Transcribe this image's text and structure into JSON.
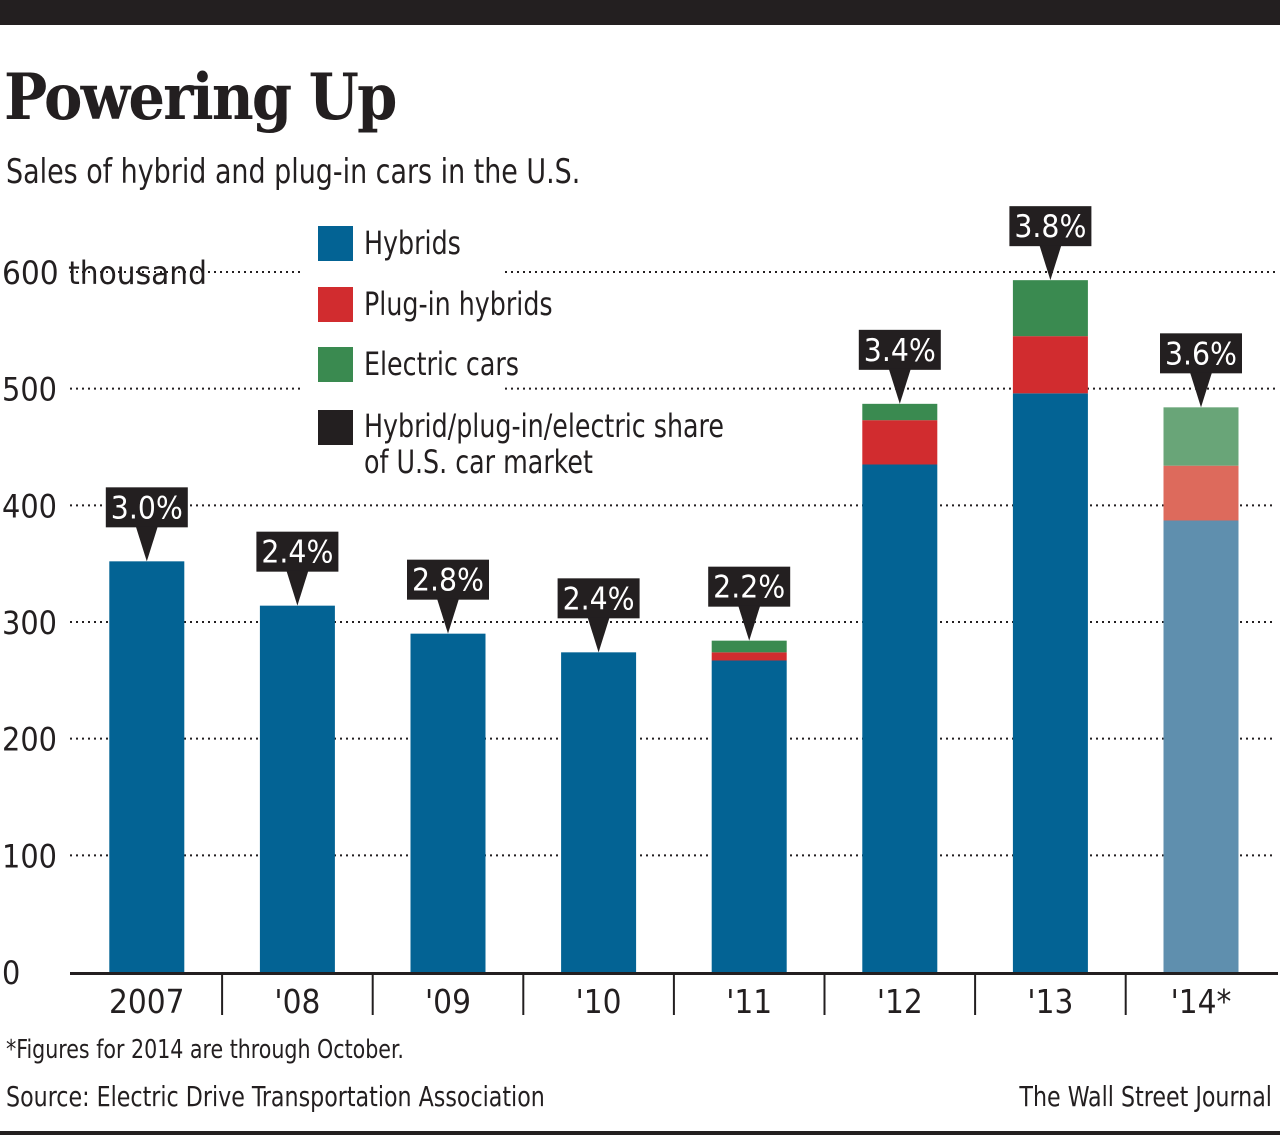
{
  "header": {
    "title": "Powering Up",
    "subtitle": "Sales of hybrid and plug-in cars  in the U.S."
  },
  "legend": [
    {
      "label": "Hybrids",
      "color": "#036394"
    },
    {
      "label": "Plug-in hybrids",
      "color": "#d12c2f"
    },
    {
      "label": "Electric cars",
      "color": "#3a8a50"
    },
    {
      "label": "Hybrid/plug-in/electric share\nof U.S. car market",
      "color": "#231f20"
    }
  ],
  "footer": {
    "footnote": "*Figures for 2014 are through October.",
    "source": "Source: Electric Drive Transportation Association",
    "credit": "The Wall Street Journal"
  },
  "chart_data": {
    "type": "bar",
    "stacked": true,
    "title": "Powering Up",
    "subtitle": "Sales of hybrid and plug-in cars  in the U.S.",
    "categories": [
      "2007",
      "'08",
      "'09",
      "'10",
      "'11",
      "'12",
      "'13",
      "'14*"
    ],
    "series": [
      {
        "name": "Hybrids",
        "color": "#036394",
        "values": [
          352,
          314,
          290,
          274,
          267,
          435,
          496,
          387
        ]
      },
      {
        "name": "Plug-in hybrids",
        "color": "#d12c2f",
        "values": [
          0,
          0,
          0,
          0,
          7,
          38,
          49,
          47
        ]
      },
      {
        "name": "Electric cars",
        "color": "#3a8a50",
        "values": [
          0,
          0,
          0,
          0,
          10,
          14,
          48,
          50
        ]
      }
    ],
    "share": [
      "3.0%",
      "2.4%",
      "2.8%",
      "2.4%",
      "2.2%",
      "3.4%",
      "3.8%",
      "3.6%"
    ],
    "partial_year_colors": {
      "Hybrids": "#5f8fae",
      "Plug-in hybrids": "#dd6a5c",
      "Electric cars": "#69a578"
    },
    "partial_index": 7,
    "ylim": [
      0,
      600
    ],
    "yticks": [
      0,
      100,
      200,
      300,
      400,
      500,
      600
    ],
    "ytick_labels": [
      "0",
      "100",
      "200",
      "300",
      "400",
      "500",
      "600 thousand"
    ],
    "grid": "dotted horizontal",
    "legend_position": "top-left"
  }
}
